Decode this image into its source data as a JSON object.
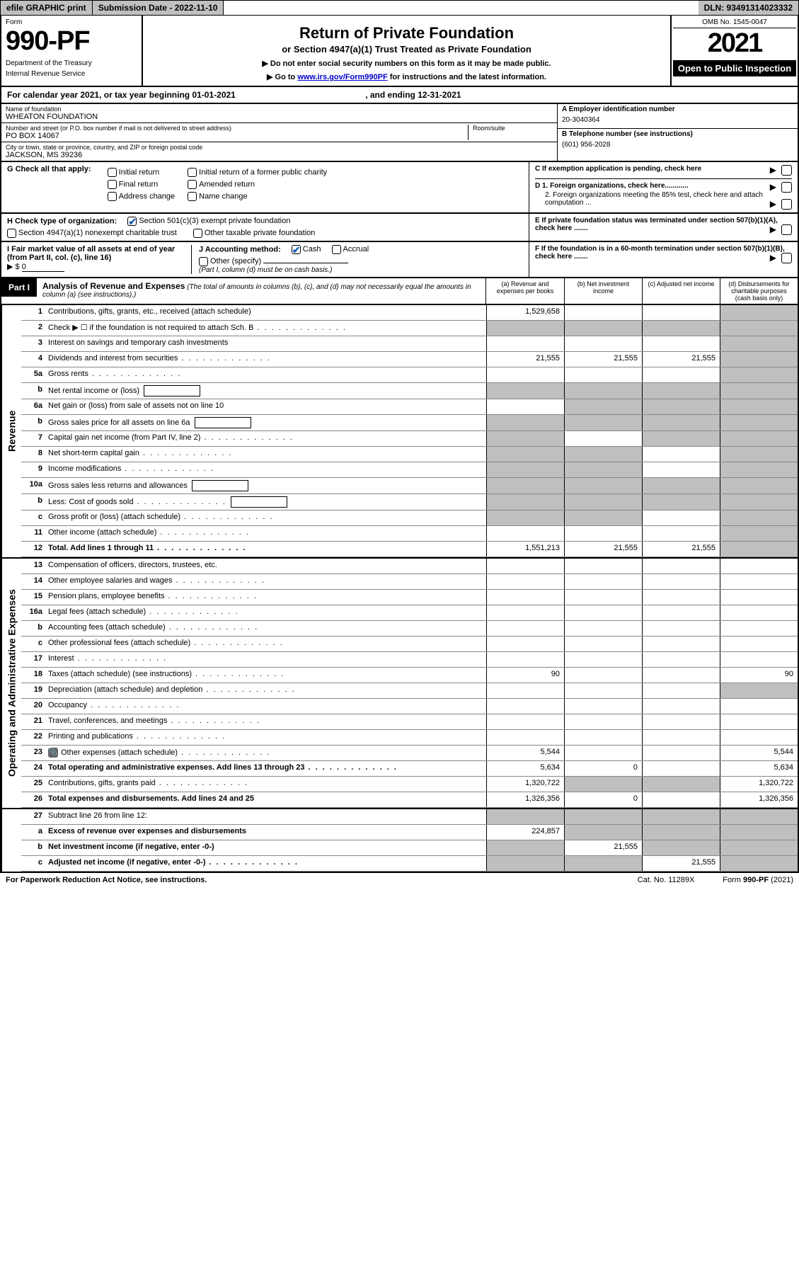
{
  "topbar": {
    "efile": "efile GRAPHIC print",
    "submission_label": "Submission Date - 2022-11-10",
    "dln": "DLN: 93491314023332"
  },
  "header": {
    "form_label": "Form",
    "form_number": "990-PF",
    "dept": "Department of the Treasury",
    "irs": "Internal Revenue Service",
    "title": "Return of Private Foundation",
    "subtitle": "or Section 4947(a)(1) Trust Treated as Private Foundation",
    "note1": "▶ Do not enter social security numbers on this form as it may be made public.",
    "note2_pre": "▶ Go to ",
    "note2_link": "www.irs.gov/Form990PF",
    "note2_post": " for instructions and the latest information.",
    "omb": "OMB No. 1545-0047",
    "taxyear": "2021",
    "otp": "Open to Public Inspection"
  },
  "calyear": {
    "pre": "For calendar year 2021, or tax year beginning ",
    "begin": "01-01-2021",
    "mid": " , and ending ",
    "end": "12-31-2021"
  },
  "entity": {
    "name_lbl": "Name of foundation",
    "name": "WHEATON FOUNDATION",
    "addr_lbl": "Number and street (or P.O. box number if mail is not delivered to street address)",
    "addr": "PO BOX 14067",
    "room_lbl": "Room/suite",
    "city_lbl": "City or town, state or province, country, and ZIP or foreign postal code",
    "city": "JACKSON, MS  39236",
    "A_lbl": "A Employer identification number",
    "A_val": "20-3040364",
    "B_lbl": "B Telephone number (see instructions)",
    "B_val": "(601) 956-2028",
    "C_lbl": "C If exemption application is pending, check here",
    "D1_lbl": "D 1. Foreign organizations, check here............",
    "D2_lbl": "2. Foreign organizations meeting the 85% test, check here and attach computation ...",
    "E_lbl": "E  If private foundation status was terminated under section 507(b)(1)(A), check here .......",
    "F_lbl": "F  If the foundation is in a 60-month termination under section 507(b)(1)(B), check here ......."
  },
  "checkG": {
    "label": "G Check all that apply:",
    "opts": [
      "Initial return",
      "Initial return of a former public charity",
      "Final return",
      "Amended return",
      "Address change",
      "Name change"
    ]
  },
  "checkH": {
    "label": "H Check type of organization:",
    "opt1": "Section 501(c)(3) exempt private foundation",
    "opt2": "Section 4947(a)(1) nonexempt charitable trust",
    "opt3": "Other taxable private foundation"
  },
  "checkI": {
    "label": "I Fair market value of all assets at end of year (from Part II, col. (c), line 16)",
    "val_prefix": "▶ $",
    "val": "0"
  },
  "checkJ": {
    "label": "J Accounting method:",
    "cash": "Cash",
    "accrual": "Accrual",
    "other": "Other (specify)",
    "note": "(Part I, column (d) must be on cash basis.)"
  },
  "part1": {
    "label": "Part I",
    "title": "Analysis of Revenue and Expenses",
    "desc": " (The total of amounts in columns (b), (c), and (d) may not necessarily equal the amounts in column (a) (see instructions).)",
    "cols": {
      "a": "(a)   Revenue and expenses per books",
      "b": "(b)   Net investment income",
      "c": "(c)   Adjusted net income",
      "d": "(d)   Disbursements for charitable purposes (cash basis only)"
    }
  },
  "side_labels": {
    "revenue": "Revenue",
    "expenses": "Operating and Administrative Expenses"
  },
  "rows": [
    {
      "n": "1",
      "label": "Contributions, gifts, grants, etc., received (attach schedule)",
      "a": "1,529,658",
      "b": "",
      "c": "",
      "d": "sh"
    },
    {
      "n": "2",
      "label": "Check ▶ ☐ if the foundation is not required to attach Sch. B",
      "a": "sh",
      "b": "sh",
      "c": "sh",
      "d": "sh",
      "dotted": true
    },
    {
      "n": "3",
      "label": "Interest on savings and temporary cash investments",
      "a": "",
      "b": "",
      "c": "",
      "d": "sh"
    },
    {
      "n": "4",
      "label": "Dividends and interest from securities",
      "a": "21,555",
      "b": "21,555",
      "c": "21,555",
      "d": "sh",
      "dotted": true
    },
    {
      "n": "5a",
      "label": "Gross rents",
      "a": "",
      "b": "",
      "c": "",
      "d": "sh",
      "dotted": true
    },
    {
      "n": "b",
      "label": "Net rental income or (loss)",
      "a": "sh",
      "b": "sh",
      "c": "sh",
      "d": "sh",
      "inputbox": true
    },
    {
      "n": "6a",
      "label": "Net gain or (loss) from sale of assets not on line 10",
      "a": "",
      "b": "sh",
      "c": "sh",
      "d": "sh"
    },
    {
      "n": "b",
      "label": "Gross sales price for all assets on line 6a",
      "a": "sh",
      "b": "sh",
      "c": "sh",
      "d": "sh",
      "inputbox": true
    },
    {
      "n": "7",
      "label": "Capital gain net income (from Part IV, line 2)",
      "a": "sh",
      "b": "",
      "c": "sh",
      "d": "sh",
      "dotted": true
    },
    {
      "n": "8",
      "label": "Net short-term capital gain",
      "a": "sh",
      "b": "sh",
      "c": "",
      "d": "sh",
      "dotted": true
    },
    {
      "n": "9",
      "label": "Income modifications",
      "a": "sh",
      "b": "sh",
      "c": "",
      "d": "sh",
      "dotted": true
    },
    {
      "n": "10a",
      "label": "Gross sales less returns and allowances",
      "a": "sh",
      "b": "sh",
      "c": "sh",
      "d": "sh",
      "inputbox": true
    },
    {
      "n": "b",
      "label": "Less: Cost of goods sold",
      "a": "sh",
      "b": "sh",
      "c": "sh",
      "d": "sh",
      "inputbox": true,
      "dotted": true
    },
    {
      "n": "c",
      "label": "Gross profit or (loss) (attach schedule)",
      "a": "sh",
      "b": "sh",
      "c": "",
      "d": "sh",
      "dotted": true
    },
    {
      "n": "11",
      "label": "Other income (attach schedule)",
      "a": "",
      "b": "",
      "c": "",
      "d": "sh",
      "dotted": true
    },
    {
      "n": "12",
      "label": "Total. Add lines 1 through 11",
      "a": "1,551,213",
      "b": "21,555",
      "c": "21,555",
      "d": "sh",
      "bold": true,
      "dotted": true
    }
  ],
  "exp_rows": [
    {
      "n": "13",
      "label": "Compensation of officers, directors, trustees, etc.",
      "a": "",
      "b": "",
      "c": "",
      "d": ""
    },
    {
      "n": "14",
      "label": "Other employee salaries and wages",
      "a": "",
      "b": "",
      "c": "",
      "d": "",
      "dotted": true
    },
    {
      "n": "15",
      "label": "Pension plans, employee benefits",
      "a": "",
      "b": "",
      "c": "",
      "d": "",
      "dotted": true
    },
    {
      "n": "16a",
      "label": "Legal fees (attach schedule)",
      "a": "",
      "b": "",
      "c": "",
      "d": "",
      "dotted": true
    },
    {
      "n": "b",
      "label": "Accounting fees (attach schedule)",
      "a": "",
      "b": "",
      "c": "",
      "d": "",
      "dotted": true
    },
    {
      "n": "c",
      "label": "Other professional fees (attach schedule)",
      "a": "",
      "b": "",
      "c": "",
      "d": "",
      "dotted": true
    },
    {
      "n": "17",
      "label": "Interest",
      "a": "",
      "b": "",
      "c": "",
      "d": "",
      "dotted": true
    },
    {
      "n": "18",
      "label": "Taxes (attach schedule) (see instructions)",
      "a": "90",
      "b": "",
      "c": "",
      "d": "90",
      "dotted": true
    },
    {
      "n": "19",
      "label": "Depreciation (attach schedule) and depletion",
      "a": "",
      "b": "",
      "c": "",
      "d": "sh",
      "dotted": true
    },
    {
      "n": "20",
      "label": "Occupancy",
      "a": "",
      "b": "",
      "c": "",
      "d": "",
      "dotted": true
    },
    {
      "n": "21",
      "label": "Travel, conferences, and meetings",
      "a": "",
      "b": "",
      "c": "",
      "d": "",
      "dotted": true
    },
    {
      "n": "22",
      "label": "Printing and publications",
      "a": "",
      "b": "",
      "c": "",
      "d": "",
      "dotted": true
    },
    {
      "n": "23",
      "label": "Other expenses (attach schedule)",
      "a": "5,544",
      "b": "",
      "c": "",
      "d": "5,544",
      "dotted": true,
      "icon": true
    },
    {
      "n": "24",
      "label": "Total operating and administrative expenses. Add lines 13 through 23",
      "a": "5,634",
      "b": "0",
      "c": "",
      "d": "5,634",
      "bold": true,
      "dotted": true
    },
    {
      "n": "25",
      "label": "Contributions, gifts, grants paid",
      "a": "1,320,722",
      "b": "sh",
      "c": "sh",
      "d": "1,320,722",
      "dotted": true
    },
    {
      "n": "26",
      "label": "Total expenses and disbursements. Add lines 24 and 25",
      "a": "1,326,356",
      "b": "0",
      "c": "",
      "d": "1,326,356",
      "bold": true
    }
  ],
  "net_rows": [
    {
      "n": "27",
      "label": "Subtract line 26 from line 12:",
      "a": "sh",
      "b": "sh",
      "c": "sh",
      "d": "sh"
    },
    {
      "n": "a",
      "label": "Excess of revenue over expenses and disbursements",
      "a": "224,857",
      "b": "sh",
      "c": "sh",
      "d": "sh",
      "bold": true
    },
    {
      "n": "b",
      "label": "Net investment income (if negative, enter -0-)",
      "a": "sh",
      "b": "21,555",
      "c": "sh",
      "d": "sh",
      "bold": true
    },
    {
      "n": "c",
      "label": "Adjusted net income (if negative, enter -0-)",
      "a": "sh",
      "b": "sh",
      "c": "21,555",
      "d": "sh",
      "bold": true,
      "dotted": true
    }
  ],
  "footer": {
    "paperwork": "For Paperwork Reduction Act Notice, see instructions.",
    "catno": "Cat. No. 11289X",
    "formref": "Form 990-PF (2021)"
  }
}
